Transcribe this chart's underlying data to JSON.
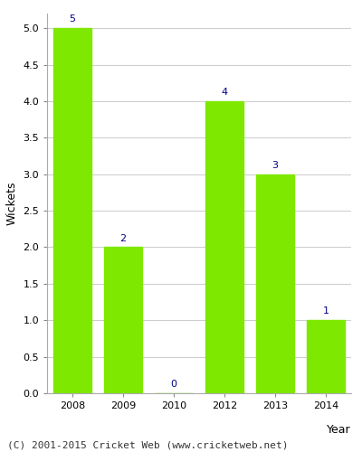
{
  "years": [
    "2008",
    "2009",
    "2010",
    "2012",
    "2013",
    "2014"
  ],
  "values": [
    5,
    2,
    0,
    4,
    3,
    1
  ],
  "bar_color": "#7FE800",
  "label_color": "#00008B",
  "ylabel": "Wickets",
  "xlabel": "Year",
  "ylim": [
    0,
    5.2
  ],
  "yticks": [
    0.0,
    0.5,
    1.0,
    1.5,
    2.0,
    2.5,
    3.0,
    3.5,
    4.0,
    4.5,
    5.0
  ],
  "background_color": "#ffffff",
  "plot_bg_color": "#ffffff",
  "footer": "(C) 2001-2015 Cricket Web (www.cricketweb.net)",
  "bar_width": 0.75,
  "label_fontsize": 8,
  "axis_label_fontsize": 9,
  "tick_fontsize": 8,
  "footer_fontsize": 8
}
